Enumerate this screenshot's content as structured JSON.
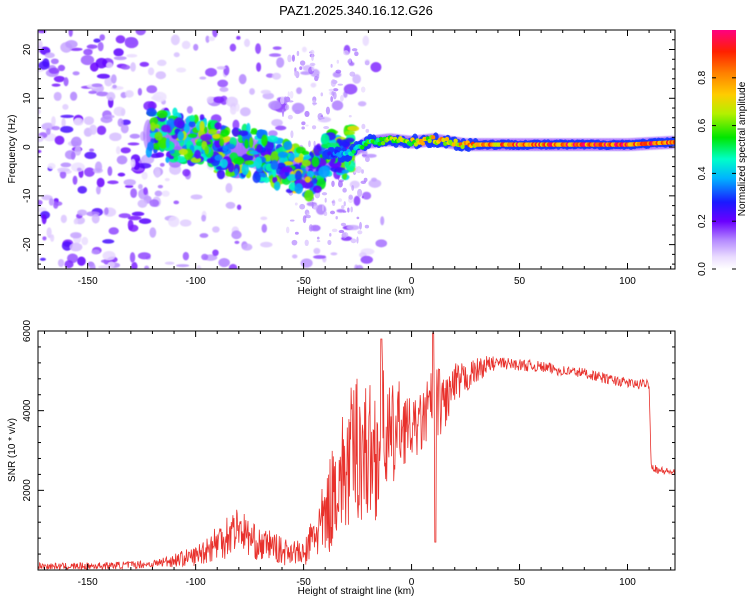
{
  "title": "PAZ1.2025.340.16.12.G26",
  "chart_data": [
    {
      "type": "heatmap",
      "xlabel": "Height of straight line (km)",
      "ylabel": "Frequency (Hz)",
      "xlim": [
        -173,
        122
      ],
      "ylim": [
        -25,
        24
      ],
      "xticks": [
        -150,
        -100,
        -50,
        0,
        50,
        100
      ],
      "yticks": [
        -20,
        -10,
        0,
        10,
        20
      ],
      "ridge": [
        {
          "x": -118,
          "f": 2.5,
          "a": 0.35
        },
        {
          "x": -105,
          "f": 2.0,
          "a": 0.4
        },
        {
          "x": -95,
          "f": 1.0,
          "a": 0.45
        },
        {
          "x": -85,
          "f": -1.5,
          "a": 0.45
        },
        {
          "x": -75,
          "f": -1.0,
          "a": 0.4
        },
        {
          "x": -65,
          "f": -2.5,
          "a": 0.35
        },
        {
          "x": -55,
          "f": -4.5,
          "a": 0.45
        },
        {
          "x": -45,
          "f": -6.0,
          "a": 0.45
        },
        {
          "x": -40,
          "f": -1.5,
          "a": 0.3
        },
        {
          "x": -30,
          "f": -1.5,
          "a": 0.45
        },
        {
          "x": -20,
          "f": 1.0,
          "a": 0.55
        },
        {
          "x": -10,
          "f": 1.5,
          "a": 0.65
        },
        {
          "x": 0,
          "f": 1.0,
          "a": 0.7
        },
        {
          "x": 10,
          "f": 1.5,
          "a": 0.75
        },
        {
          "x": 25,
          "f": 0.5,
          "a": 0.8
        },
        {
          "x": 50,
          "f": 0.5,
          "a": 0.9
        },
        {
          "x": 75,
          "f": 0.5,
          "a": 0.92
        },
        {
          "x": 100,
          "f": 0.5,
          "a": 0.95
        },
        {
          "x": 122,
          "f": 1.0,
          "a": 0.9
        }
      ],
      "colorbar": {
        "label": "Normalized spectral amplitude",
        "range": [
          0.0,
          1.0
        ],
        "ticks": [
          0.0,
          0.2,
          0.4,
          0.6,
          0.8
        ],
        "tick_labels": [
          "0.0",
          "0.2",
          "0.4",
          "0.6",
          "0.8"
        ]
      }
    },
    {
      "type": "line",
      "color": "#e8312c",
      "xlabel": "Height of straight line (km)",
      "ylabel": "SNR (10 * v/v)",
      "xlim": [
        -173,
        122
      ],
      "ylim": [
        0,
        6000
      ],
      "xticks": [
        -150,
        -100,
        -50,
        0,
        50,
        100
      ],
      "yticks": [
        2000,
        4000,
        6000
      ],
      "x": [
        -173,
        -160,
        -140,
        -120,
        -110,
        -100,
        -90,
        -85,
        -80,
        -75,
        -70,
        -65,
        -60,
        -55,
        -50,
        -45,
        -40,
        -35,
        -30,
        -25,
        -20,
        -15,
        -13,
        -10,
        -5,
        0,
        5,
        10,
        15,
        20,
        25,
        30,
        35,
        40,
        50,
        60,
        70,
        80,
        90,
        100,
        105,
        110,
        111,
        115,
        122
      ],
      "y": [
        100,
        90,
        110,
        150,
        250,
        350,
        700,
        900,
        1100,
        800,
        600,
        650,
        450,
        500,
        350,
        900,
        1200,
        2200,
        2500,
        3200,
        2900,
        3000,
        3800,
        3100,
        3700,
        3500,
        3700,
        4300,
        4200,
        4600,
        4800,
        5000,
        5150,
        5200,
        5150,
        5100,
        5000,
        4950,
        4800,
        4700,
        4650,
        4700,
        2600,
        2500,
        2450
      ],
      "noise_envelope": [
        {
          "x": -173,
          "amp": 80
        },
        {
          "x": -120,
          "amp": 100
        },
        {
          "x": -100,
          "amp": 250
        },
        {
          "x": -85,
          "amp": 600
        },
        {
          "x": -70,
          "amp": 400
        },
        {
          "x": -50,
          "amp": 300
        },
        {
          "x": -38,
          "amp": 1200
        },
        {
          "x": -25,
          "amp": 2000
        },
        {
          "x": -10,
          "amp": 1500
        },
        {
          "x": 0,
          "amp": 700
        },
        {
          "x": 12,
          "amp": 900
        },
        {
          "x": 25,
          "amp": 400
        },
        {
          "x": 40,
          "amp": 150
        },
        {
          "x": 110,
          "amp": 120
        },
        {
          "x": 122,
          "amp": 80
        }
      ],
      "spikes": [
        {
          "x": -14,
          "y": 5800
        },
        {
          "x": 10,
          "y": 5950
        },
        {
          "x": 11,
          "y": 700
        }
      ]
    }
  ]
}
